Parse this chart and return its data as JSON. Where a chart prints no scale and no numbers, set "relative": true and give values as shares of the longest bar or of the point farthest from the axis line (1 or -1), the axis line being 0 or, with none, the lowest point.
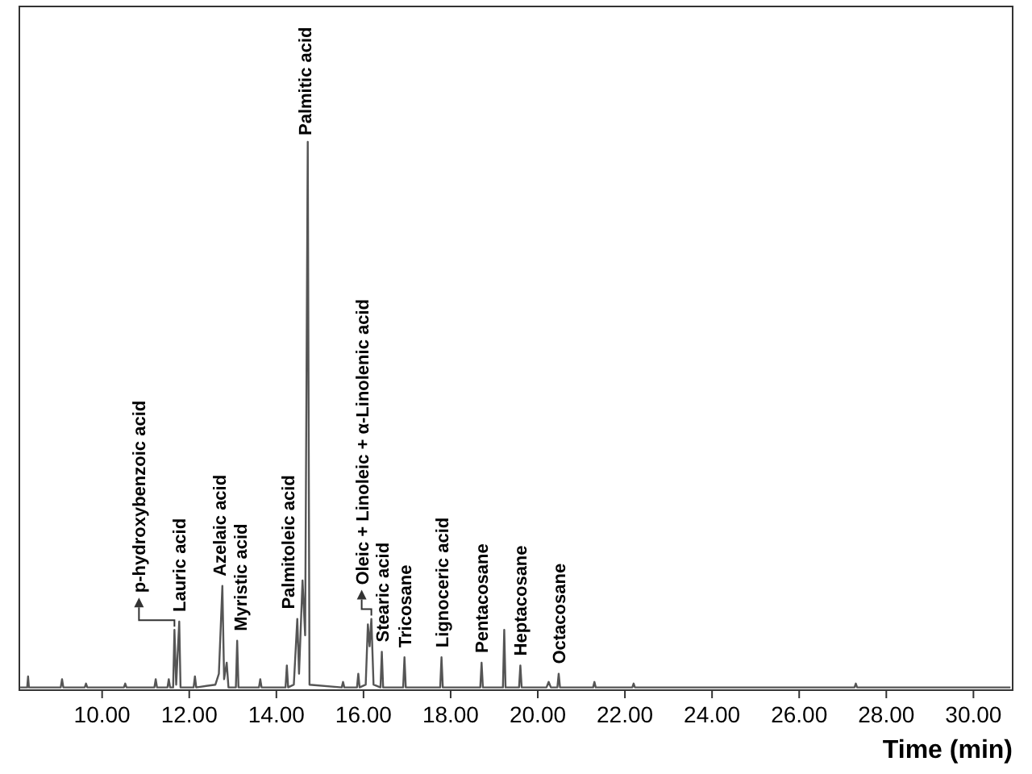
{
  "chart_data": {
    "type": "line",
    "relative": true,
    "xlabel": "Time (min)",
    "xlim": [
      8.1,
      30.9
    ],
    "xticks": [
      {
        "value": 10,
        "label": "10.00"
      },
      {
        "value": 12,
        "label": "12.00"
      },
      {
        "value": 14,
        "label": "14.00"
      },
      {
        "value": 16,
        "label": "16.00"
      },
      {
        "value": 18,
        "label": "18.00"
      },
      {
        "value": 20,
        "label": "20.00"
      },
      {
        "value": 22,
        "label": "22.00"
      },
      {
        "value": 24,
        "label": "24.00"
      },
      {
        "value": 26,
        "label": "26.00"
      },
      {
        "value": 28,
        "label": "28.00"
      },
      {
        "value": 30,
        "label": "30.00"
      }
    ],
    "grid": false,
    "marker": "none",
    "line_style": "solid",
    "series": [
      {
        "color": "#555555",
        "x": [
          8.12,
          8.28,
          8.3,
          8.32,
          9.05,
          9.08,
          9.11,
          9.6,
          9.63,
          9.66,
          10.5,
          10.53,
          10.56,
          11.2,
          11.23,
          11.26,
          11.5,
          11.53,
          11.56,
          11.63,
          11.66,
          11.7,
          11.77,
          11.8,
          12.1,
          12.13,
          12.16,
          12.6,
          12.68,
          12.76,
          12.8,
          12.86,
          12.9,
          13.07,
          13.1,
          13.13,
          13.6,
          13.63,
          13.66,
          14.21,
          14.24,
          14.27,
          14.4,
          14.48,
          14.52,
          14.6,
          14.66,
          14.72,
          14.76,
          15.5,
          15.53,
          15.56,
          15.85,
          15.88,
          15.91,
          16.05,
          16.1,
          16.14,
          16.18,
          16.23,
          16.39,
          16.42,
          16.45,
          16.91,
          16.94,
          16.97,
          17.76,
          17.79,
          17.82,
          18.68,
          18.71,
          18.74,
          19.2,
          19.23,
          19.26,
          19.57,
          19.6,
          19.63,
          20.2,
          20.25,
          20.3,
          20.45,
          20.48,
          20.51,
          21.27,
          21.3,
          21.33,
          22.17,
          22.2,
          22.23,
          27.27,
          27.3,
          27.33,
          30.85
        ],
        "values": [
          0.005,
          0.005,
          0.025,
          0.005,
          0.005,
          0.02,
          0.005,
          0.005,
          0.012,
          0.005,
          0.005,
          0.012,
          0.005,
          0.005,
          0.02,
          0.005,
          0.005,
          0.02,
          0.005,
          0.005,
          0.11,
          0.01,
          0.125,
          0.005,
          0.005,
          0.025,
          0.005,
          0.01,
          0.03,
          0.19,
          0.02,
          0.05,
          0.005,
          0.005,
          0.09,
          0.005,
          0.005,
          0.02,
          0.005,
          0.005,
          0.045,
          0.005,
          0.01,
          0.13,
          0.03,
          0.2,
          0.1,
          1,
          0.01,
          0.005,
          0.015,
          0.005,
          0.005,
          0.03,
          0.005,
          0.01,
          0.12,
          0.08,
          0.13,
          0.01,
          0.005,
          0.07,
          0.005,
          0.005,
          0.06,
          0.005,
          0.005,
          0.06,
          0.005,
          0.005,
          0.05,
          0.005,
          0.005,
          0.11,
          0.005,
          0.005,
          0.045,
          0.005,
          0.005,
          0.015,
          0.005,
          0.005,
          0.03,
          0.005,
          0.005,
          0.015,
          0.005,
          0.005,
          0.012,
          0.005,
          0.005,
          0.012,
          0.005,
          0.005
        ]
      }
    ],
    "annotations": [
      {
        "text": "p-hydroxybenzoic acid",
        "x": 11.66,
        "y": 0.11
      },
      {
        "text": "Lauric acid",
        "x": 11.77,
        "y": 0.125
      },
      {
        "text": "Azelaic acid",
        "x": 12.76,
        "y": 0.19
      },
      {
        "text": "Myristic acid",
        "x": 13.1,
        "y": 0.09
      },
      {
        "text": "Palmitoleic acid",
        "x": 14.48,
        "y": 0.13
      },
      {
        "text": "Palmitic acid",
        "x": 14.72,
        "y": 1
      },
      {
        "text": "Oleic + Linoleic + α-Linolenic acid",
        "x": 16.18,
        "y": 0.13
      },
      {
        "text": "Stearic acid",
        "x": 16.42,
        "y": 0.07
      },
      {
        "text": "Tricosane",
        "x": 16.94,
        "y": 0.06
      },
      {
        "text": "Lignoceric acid",
        "x": 17.79,
        "y": 0.06
      },
      {
        "text": "Pentacosane",
        "x": 18.71,
        "y": 0.05
      },
      {
        "text": "Heptacosane",
        "x": 19.6,
        "y": 0.045
      },
      {
        "text": "Octacosane",
        "x": 20.48,
        "y": 0.03
      }
    ]
  }
}
